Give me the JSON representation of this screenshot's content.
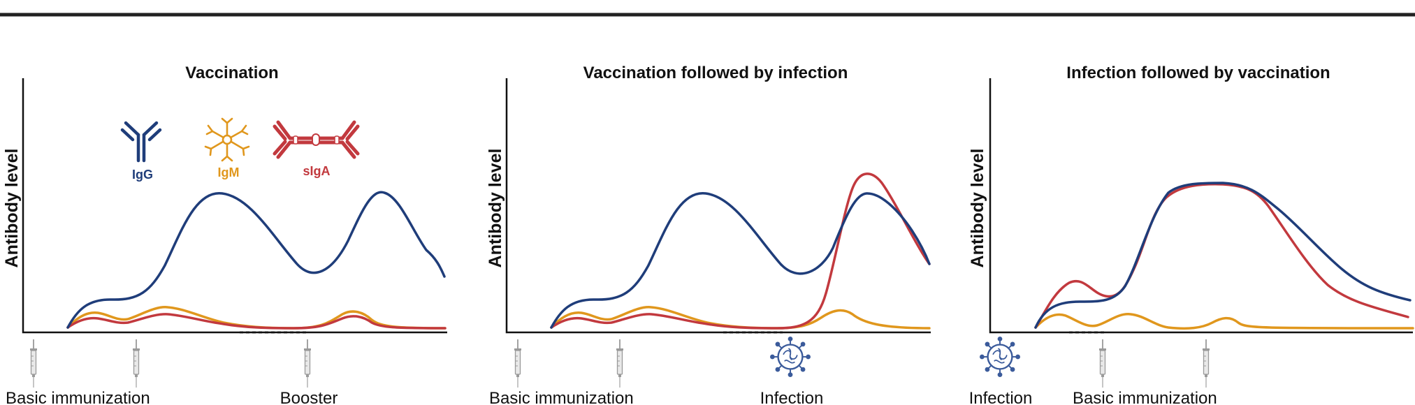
{
  "colors": {
    "igg": "#1f3d7a",
    "igm": "#e0971d",
    "siga": "#c2393e",
    "axis": "#111111",
    "virus": "#3b5b9b",
    "syringe": "#9a9a9a"
  },
  "legend": {
    "igg": "IgG",
    "igm": "IgM",
    "siga": "sIgA"
  },
  "panels": [
    {
      "title": "Vaccination",
      "ylabel": "Antibody level",
      "events": [
        "Basic immunization",
        "Booster"
      ]
    },
    {
      "title": "Vaccination followed by infection",
      "ylabel": "Antibody level",
      "events": [
        "Basic immunization",
        "Infection"
      ]
    },
    {
      "title": "Infection followed by vaccination",
      "ylabel": "Antibody level",
      "events": [
        "Infection",
        "Basic immunization"
      ]
    }
  ],
  "icons": {
    "antibody_igg": "igg-antibody-icon",
    "antibody_igm": "igm-pentamer-icon",
    "antibody_siga": "siga-dimer-icon",
    "syringe": "syringe-icon",
    "virus": "virus-icon"
  }
}
